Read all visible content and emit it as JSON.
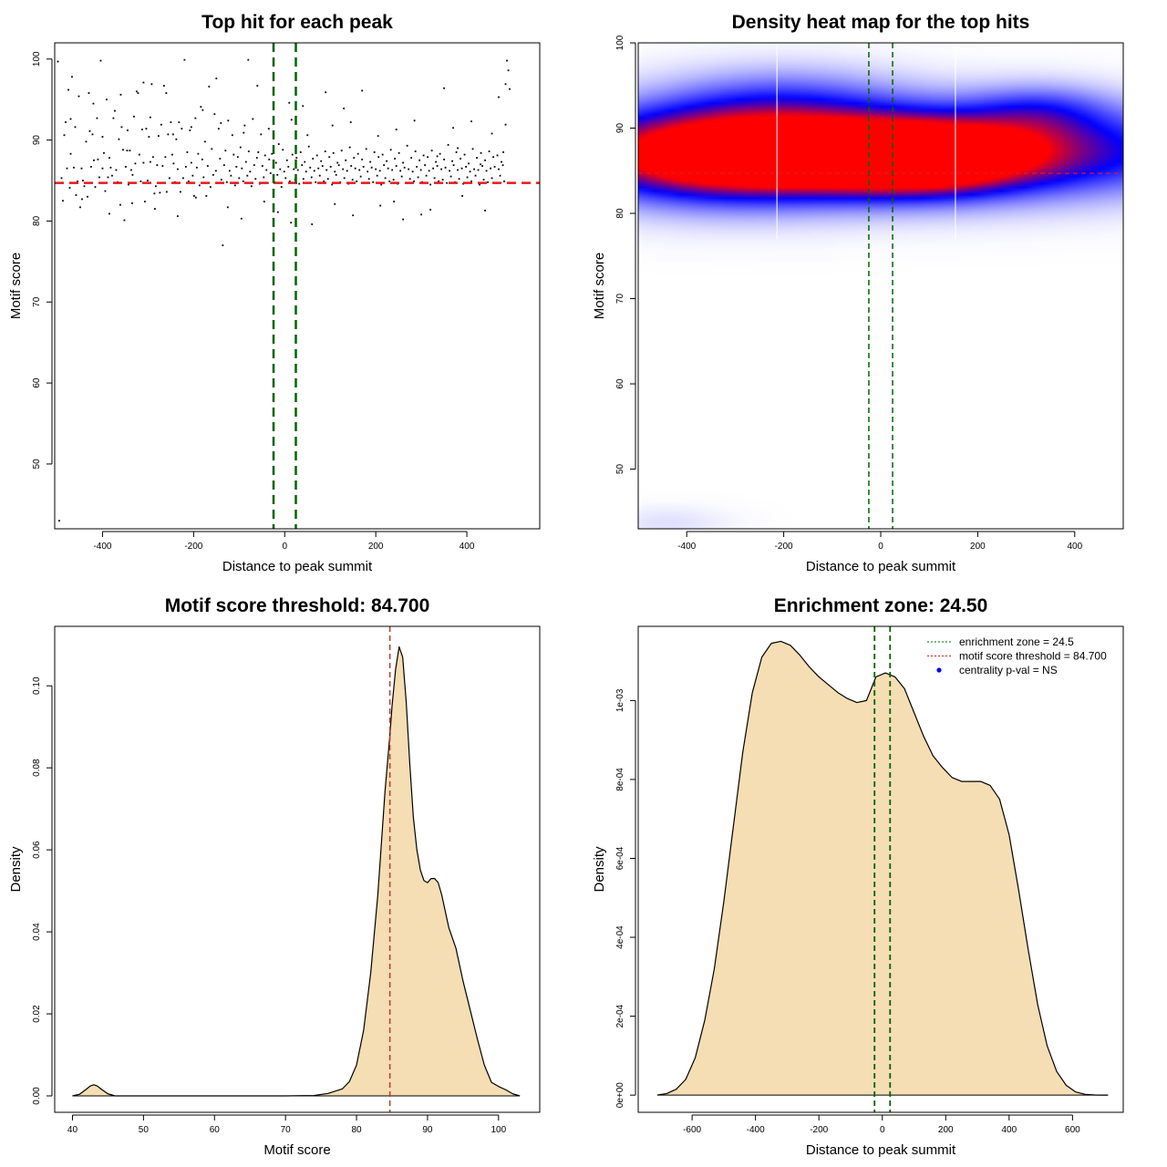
{
  "colors": {
    "threshold": "#e41a1c",
    "zone": "#006400",
    "fill": "#f5deb3",
    "points": "#000000",
    "heat_low": "#0000ff",
    "heat_high": "#ff0000",
    "legend_dot": "#0000ff"
  },
  "chart_data": [
    {
      "id": "scatter",
      "type": "scatter",
      "title": "Top hit for each peak",
      "xlabel": "Distance to peak summit",
      "ylabel": "Motif score",
      "xlim": [
        -505,
        560
      ],
      "ylim": [
        42,
        102
      ],
      "xticks": [
        -400,
        -200,
        0,
        200,
        400
      ],
      "yticks": [
        50,
        60,
        70,
        80,
        90,
        100
      ],
      "threshold": 84.7,
      "zone": [
        -24.5,
        24.5
      ],
      "points_x": [
        -495,
        -490,
        -487,
        -484,
        -481,
        -478,
        -475,
        -472,
        -470,
        -467,
        -463,
        -460,
        -458,
        -455,
        -452,
        -449,
        -446,
        -443,
        -440,
        -436,
        -433,
        -430,
        -428,
        -425,
        -422,
        -419,
        -416,
        -412,
        -410,
        -407,
        -404,
        -400,
        -397,
        -394,
        -391,
        -388,
        -385,
        -382,
        -379,
        -376,
        -373,
        -370,
        -367,
        -364,
        -361,
        -358,
        -355,
        -352,
        -349,
        -346,
        -343,
        -340,
        -337,
        -334,
        -331,
        -328,
        -325,
        -322,
        -319,
        -316,
        -313,
        -310,
        -307,
        -304,
        -301,
        -298,
        -295,
        -292,
        -289,
        -286,
        -283,
        -280,
        -277,
        -274,
        -271,
        -268,
        -265,
        -262,
        -259,
        -256,
        -253,
        -250,
        -247,
        -244,
        -241,
        -238,
        -235,
        -232,
        -229,
        -226,
        -223,
        -220,
        -217,
        -214,
        -211,
        -208,
        -205,
        -202,
        -199,
        -196,
        -193,
        -190,
        -187,
        -184,
        -181,
        -178,
        -175,
        -172,
        -169,
        -166,
        -163,
        -160,
        -157,
        -154,
        -151,
        -148,
        -145,
        -142,
        -139,
        -136,
        -133,
        -130,
        -127,
        -124,
        -121,
        -118,
        -115,
        -112,
        -109,
        -106,
        -103,
        -100,
        -97,
        -94,
        -91,
        -88,
        -85,
        -82,
        -79,
        -76,
        -73,
        -70,
        -67,
        -64,
        -61,
        -58,
        -55,
        -52,
        -49,
        -46,
        -43,
        -40,
        -37,
        -34,
        -31,
        -28,
        -25,
        -22,
        -19,
        -16,
        -13,
        -10,
        -7,
        -4,
        -1,
        2,
        5,
        8,
        11,
        14,
        17,
        20,
        23,
        26,
        29,
        32,
        35,
        38,
        41,
        44,
        47,
        50,
        53,
        56,
        59,
        62,
        65,
        68,
        71,
        74,
        77,
        80,
        83,
        86,
        89,
        92,
        95,
        98,
        101,
        104,
        107,
        110,
        113,
        116,
        119,
        122,
        125,
        128,
        131,
        134,
        137,
        140,
        143,
        146,
        149,
        152,
        155,
        158,
        161,
        164,
        167,
        170,
        173,
        176,
        179,
        182,
        185,
        188,
        191,
        194,
        197,
        200,
        203,
        206,
        209,
        212,
        215,
        218,
        221,
        224,
        227,
        230,
        233,
        236,
        239,
        242,
        245,
        248,
        251,
        254,
        257,
        260,
        263,
        266,
        269,
        272,
        275,
        278,
        281,
        284,
        287,
        290,
        293,
        296,
        299,
        302,
        305,
        308,
        311,
        314,
        317,
        320,
        323,
        326,
        329,
        332,
        335,
        338,
        341,
        344,
        347,
        350,
        353,
        356,
        359,
        362,
        365,
        368,
        371,
        374,
        377,
        380,
        383,
        386,
        389,
        392,
        395,
        398,
        401,
        404,
        407,
        410,
        413,
        416,
        419,
        422,
        425,
        428,
        431,
        434,
        437,
        440,
        443,
        446,
        449,
        452,
        455,
        458,
        461,
        464,
        467,
        470,
        473,
        476,
        479,
        482,
        485,
        488,
        491,
        494,
        -498,
        -360,
        -150,
        -80,
        10,
        130,
        350,
        470,
        -420,
        -310,
        -260,
        -180,
        -60,
        40,
        90,
        170,
        240,
        300,
        390,
        440,
        -445,
        -385,
        -335,
        -285,
        -235,
        -195,
        -125,
        -95,
        -45,
        -15,
        60,
        110,
        150,
        210,
        260,
        320,
        370,
        410,
        455,
        485,
        -470,
        -400,
        -345,
        -295,
        -245,
        -205,
        -140,
        -90,
        -35,
        15,
        50,
        105,
        145,
        205,
        245,
        285,
        335,
        380,
        430,
        480,
        -300,
        -100,
        100,
        300
      ],
      "points_y": [
        43,
        85.3,
        82.5,
        90.6,
        92.2,
        86.5,
        96.2,
        84.1,
        88.3,
        97.8,
        86.6,
        91.6,
        83.2,
        84.9,
        95.4,
        81.7,
        86.5,
        85,
        84.3,
        89.8,
        83,
        95.8,
        91.1,
        86.7,
        90.7,
        87.5,
        84.2,
        92.7,
        87.6,
        85.4,
        99.8,
        86.5,
        88.4,
        83.7,
        95,
        85.4,
        87.8,
        86.6,
        85.6,
        92.7,
        93.6,
        86.3,
        84.8,
        90.1,
        82,
        91.6,
        88.8,
        80.1,
        86.7,
        88.7,
        84.5,
        88.7,
        86.3,
        85.7,
        92.9,
        87.1,
        96,
        95.8,
        88.2,
        84.9,
        91.3,
        87.2,
        82.4,
        91.4,
        85,
        90.4,
        87.3,
        96.9,
        87.9,
        83.4,
        84.3,
        86.9,
        90.5,
        83.5,
        91.9,
        86.8,
        96.7,
        87.9,
        83.6,
        90.7,
        85.3,
        92.2,
        88.2,
        87.1,
        84.8,
        90.1,
        86.4,
        92.2,
        83.6,
        91.4,
        85.3,
        99.9,
        86.7,
        88.5,
        84.9,
        91.2,
        87.2,
        85.6,
        83.1,
        92.7,
        86.6,
        88.3,
        84.4,
        94.1,
        87.6,
        85.4,
        89.8,
        83.1,
        86.8,
        96.6,
        84.2,
        88.9,
        85.7,
        93.2,
        86.2,
        84.7,
        91.4,
        87.7,
        85.1,
        77,
        86.9,
        88.7,
        84.8,
        92.4,
        86.2,
        85.6,
        90.6,
        88.2,
        84.4,
        86.7,
        87.9,
        85.3,
        89.1,
        86.5,
        84.9,
        91.8,
        87.3,
        85.6,
        88.6,
        86.1,
        84.3,
        92.6,
        86.9,
        85.2,
        87.8,
        88.5,
        84.6,
        90.7,
        86.8,
        85.4,
        88.1,
        86.3,
        84.7,
        87.6,
        85.9,
        88.3,
        86.6,
        84.8,
        87.2,
        85.7,
        89.5,
        86.4,
        84.2,
        88.8,
        86.1,
        85.3,
        87.5,
        86.7,
        84.9,
        79.8,
        88.2,
        86.4,
        85.1,
        87.8,
        86.3,
        84.6,
        88.5,
        86.9,
        85.2,
        87.3,
        86.1,
        84.7,
        89.2,
        86.6,
        85.4,
        87.7,
        86.2,
        84.8,
        88.1,
        86.5,
        85.6,
        87.4,
        86.8,
        84.9,
        88.6,
        86.3,
        85.2,
        87.9,
        86.7,
        84.5,
        88.4,
        86.1,
        85.7,
        87.2,
        86.9,
        84.8,
        88.7,
        86.4,
        85.3,
        87.5,
        86.2,
        84.6,
        89.1,
        86.8,
        85.1,
        87.8,
        86.5,
        84.9,
        88.3,
        86.3,
        85.5,
        87.6,
        86.7,
        84.7,
        88.9,
        86.1,
        85.2,
        87.3,
        86.6,
        84.8,
        88.5,
        86.4,
        85.6,
        87.9,
        86.2,
        84.5,
        88.2,
        86.9,
        85.3,
        87.4,
        86.5,
        84.9,
        88.8,
        86.3,
        85.1,
        87.7,
        86.8,
        84.6,
        88.4,
        86.2,
        85.5,
        87.2,
        86.6,
        84.7,
        89.3,
        86.4,
        85.2,
        87.8,
        86.1,
        84.9,
        88.6,
        86.7,
        85.4,
        87.5,
        86.3,
        84.8,
        88.1,
        86.9,
        85.6,
        87.9,
        86.2,
        84.5,
        88.7,
        86.5,
        85.3,
        87.3,
        86.8,
        84.9,
        88.3,
        86.4,
        85.1,
        87.6,
        86.6,
        84.7,
        89.4,
        86.2,
        85.5,
        87.4,
        86.9,
        84.8,
        88.5,
        86.3,
        85.2,
        87.7,
        86.5,
        84.6,
        88.2,
        86.7,
        85.4,
        87.1,
        86.1,
        84.9,
        88.9,
        86.4,
        85.6,
        87.8,
        86.3,
        84.5,
        88.4,
        86.8,
        85.1,
        87.5,
        86.2,
        84.8,
        88.6,
        86.5,
        85.3,
        87.9,
        86.7,
        84.7,
        88.1,
        86.4,
        85.6,
        87.3,
        86.9,
        84.9,
        96.9,
        99.8,
        98.6,
        96.3,
        99.7,
        95.6,
        97.6,
        99.9,
        94.6,
        93.9,
        96.4,
        95.3,
        94.5,
        97.1,
        95.8,
        93.7,
        96.7,
        94.2,
        95.9,
        96.1,
        82.4,
        80.8,
        83.1,
        81.3,
        82.7,
        80.9,
        82.2,
        81.5,
        80.6,
        82.9,
        81.7,
        80.3,
        82.4,
        81.1,
        79.6,
        82.1,
        80.7,
        81.9,
        80.2,
        81.4,
        91.5,
        92.3,
        90.8,
        91.9,
        92.6,
        90.4,
        91.2,
        92.8,
        90.7,
        91.6,
        92.1,
        90.9,
        91.4,
        92.5,
        90.6,
        91.8,
        92.2,
        90.5,
        91.3,
        92.4,
        88,
        89,
        87,
        88.5
      ]
    },
    {
      "id": "heatmap",
      "type": "heatmap",
      "title": "Density heat map for the top hits",
      "xlabel": "Distance to peak summit",
      "ylabel": "Motif score",
      "xlim": [
        -500,
        500
      ],
      "ylim": [
        43,
        100
      ],
      "xticks": [
        -400,
        -200,
        0,
        200,
        400
      ],
      "yticks": [
        50,
        60,
        70,
        80,
        90,
        100
      ],
      "threshold": 84.7,
      "zone": [
        -24.5,
        24.5
      ],
      "white_lines_x": [
        -214,
        154
      ],
      "blobs": [
        {
          "x": 0,
          "y": 87.2,
          "sx": 420,
          "sy": 3.6,
          "w": 1.0
        },
        {
          "x": -330,
          "y": 86.8,
          "sx": 190,
          "sy": 3.8,
          "w": 0.55
        },
        {
          "x": 80,
          "y": 86.3,
          "sx": 130,
          "sy": 2.6,
          "w": 0.6
        },
        {
          "x": -100,
          "y": 86.5,
          "sx": 220,
          "sy": 2.2,
          "w": 0.35
        },
        {
          "x": 330,
          "y": 92.0,
          "sx": 100,
          "sy": 2.2,
          "w": 0.25
        },
        {
          "x": -200,
          "y": 93.5,
          "sx": 170,
          "sy": 2.8,
          "w": 0.22
        },
        {
          "x": -440,
          "y": 43.6,
          "sx": 90,
          "sy": 1.4,
          "w": 0.06
        }
      ]
    },
    {
      "id": "score-density",
      "type": "area",
      "title": "Motif score threshold: 84.700",
      "xlabel": "Motif score",
      "ylabel": "Density",
      "xlim": [
        37.5,
        105.8
      ],
      "ylim": [
        -0.004,
        0.1145
      ],
      "xticks": [
        40,
        50,
        60,
        70,
        80,
        90,
        100
      ],
      "xtick_labels": [
        "40",
        "50",
        "60",
        "70",
        "80",
        "90",
        "100"
      ],
      "yticks": [
        0,
        0.02,
        0.04,
        0.06,
        0.08,
        0.1
      ],
      "ytick_labels": [
        "0.00",
        "0.02",
        "0.04",
        "0.06",
        "0.08",
        "0.10"
      ],
      "threshold": 84.7,
      "x": [
        40,
        41,
        42,
        42.5,
        43,
        43.5,
        44,
        45,
        46,
        50,
        60,
        70,
        74,
        76,
        78,
        79,
        80,
        81,
        82,
        83,
        84,
        84.7,
        85,
        85.5,
        86,
        86.5,
        87,
        87.5,
        88,
        88.5,
        89,
        89.5,
        90,
        90.5,
        91,
        91.5,
        92,
        92.5,
        93,
        94,
        95,
        96,
        97,
        98,
        99,
        100,
        101,
        102,
        103
      ],
      "y": [
        0,
        0.0004,
        0.0017,
        0.0024,
        0.0027,
        0.0024,
        0.0017,
        0.0005,
        0,
        0,
        0,
        0,
        0.0001,
        0.0006,
        0.0017,
        0.0035,
        0.0075,
        0.016,
        0.03,
        0.049,
        0.074,
        0.088,
        0.095,
        0.104,
        0.1095,
        0.107,
        0.096,
        0.081,
        0.068,
        0.06,
        0.055,
        0.0525,
        0.052,
        0.053,
        0.053,
        0.052,
        0.049,
        0.045,
        0.041,
        0.036,
        0.028,
        0.021,
        0.014,
        0.0075,
        0.0033,
        0.0023,
        0.0015,
        0.0005,
        0
      ]
    },
    {
      "id": "distance-density",
      "type": "area",
      "title": "Enrichment zone: 24.50",
      "xlabel": "Distance to peak summit",
      "ylabel": "Density",
      "xlim": [
        -770,
        760
      ],
      "ylim": [
        -4.35e-05,
        0.001188
      ],
      "xticks": [
        -600,
        -400,
        -200,
        0,
        200,
        400,
        600
      ],
      "xtick_labels": [
        "-600",
        "-400",
        "-200",
        "0",
        "200",
        "400",
        "600"
      ],
      "yticks": [
        0,
        0.0002,
        0.0004,
        0.0006,
        0.0008,
        0.001
      ],
      "ytick_labels": [
        "0e+00",
        "2e-04",
        "4e-04",
        "6e-04",
        "8e-04",
        "1e-03"
      ],
      "zone": [
        -24.5,
        24.5
      ],
      "x": [
        -710,
        -680,
        -650,
        -620,
        -590,
        -560,
        -530,
        -500,
        -470,
        -440,
        -410,
        -380,
        -350,
        -320,
        -290,
        -260,
        -230,
        -200,
        -170,
        -140,
        -110,
        -80,
        -50,
        -20,
        10,
        40,
        70,
        100,
        130,
        160,
        190,
        220,
        250,
        280,
        310,
        340,
        370,
        400,
        430,
        460,
        490,
        520,
        550,
        580,
        610,
        640,
        670,
        700,
        712
      ],
      "y": [
        3e-07,
        4e-06,
        1.5e-05,
        4e-05,
        9.5e-05,
        0.00019,
        0.00032,
        0.00049,
        0.00068,
        0.00087,
        0.00102,
        0.00111,
        0.001145,
        0.00115,
        0.00114,
        0.001115,
        0.001085,
        0.00106,
        0.00104,
        0.00102,
        0.001005,
        0.000995,
        0.001,
        0.00106,
        0.00107,
        0.00106,
        0.00103,
        0.00097,
        0.00091,
        0.00086,
        0.00083,
        0.000805,
        0.000795,
        0.000795,
        0.000795,
        0.000785,
        0.00075,
        0.00066,
        0.00052,
        0.00037,
        0.00023,
        0.000125,
        6e-05,
        2.5e-05,
        8e-06,
        2e-06,
        4e-07,
        1e-07,
        0
      ],
      "legend": {
        "placement": "top-right",
        "entries": [
          "enrichment zone = 24.5",
          "motif score threshold = 84.700",
          "centrality p-val = NS"
        ]
      }
    }
  ]
}
